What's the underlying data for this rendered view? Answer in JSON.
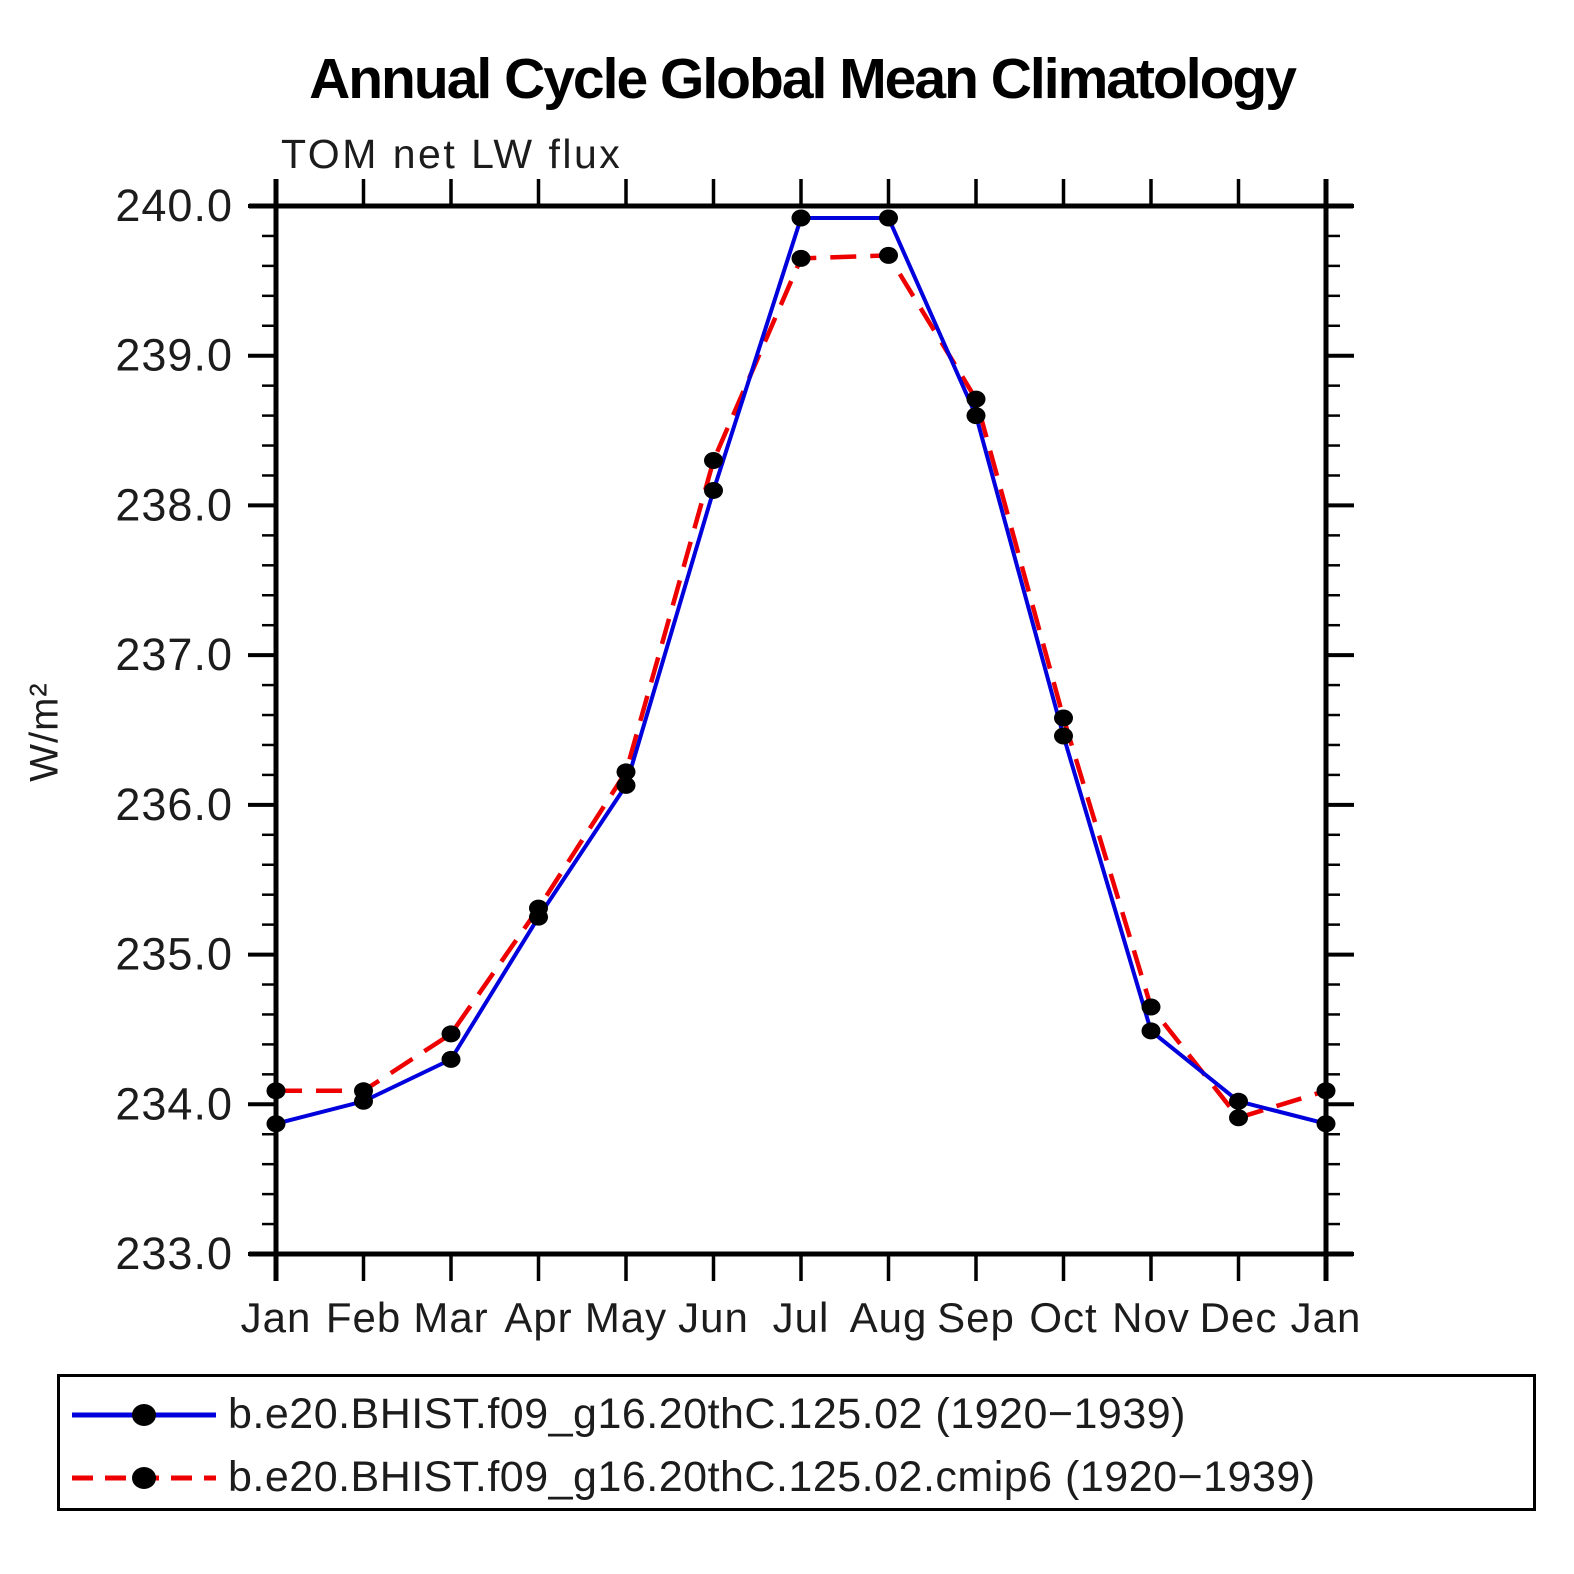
{
  "header": {
    "title": "Annual Cycle Global Mean Climatology",
    "subtitle": "TOM net LW flux"
  },
  "chart_data": {
    "type": "line",
    "title": "Annual Cycle Global Mean Climatology",
    "subtitle": "TOM net LW flux",
    "xlabel": "",
    "ylabel": "W/m²",
    "ylim": [
      233.0,
      240.0
    ],
    "y_major_step": 1.0,
    "y_minor_step": 0.2,
    "y_tick_labels": [
      "233.0",
      "234.0",
      "235.0",
      "236.0",
      "237.0",
      "238.0",
      "239.0",
      "240.0"
    ],
    "categories": [
      "Jan",
      "Feb",
      "Mar",
      "Apr",
      "May",
      "Jun",
      "Jul",
      "Aug",
      "Sep",
      "Oct",
      "Nov",
      "Dec",
      "Jan"
    ],
    "grid": false,
    "legend_position": "bottom",
    "axis_color": "#000000",
    "marker_color": "#000000",
    "series": [
      {
        "name": "b.e20.BHIST.f09_g16.20thC.125.02 (1920−1939)",
        "color": "#0000dd",
        "style": "solid",
        "marker": "filled-circle",
        "values": [
          233.87,
          234.02,
          234.3,
          235.25,
          236.13,
          238.1,
          239.92,
          239.92,
          238.6,
          236.46,
          234.49,
          234.02,
          233.87
        ]
      },
      {
        "name": "b.e20.BHIST.f09_g16.20thC.125.02.cmip6 (1920−1939)",
        "color": "#ee0000",
        "style": "dashed",
        "marker": "filled-circle",
        "values": [
          234.09,
          234.09,
          234.47,
          235.31,
          236.22,
          238.3,
          239.65,
          239.67,
          238.71,
          236.58,
          234.65,
          233.91,
          234.09
        ]
      }
    ]
  }
}
